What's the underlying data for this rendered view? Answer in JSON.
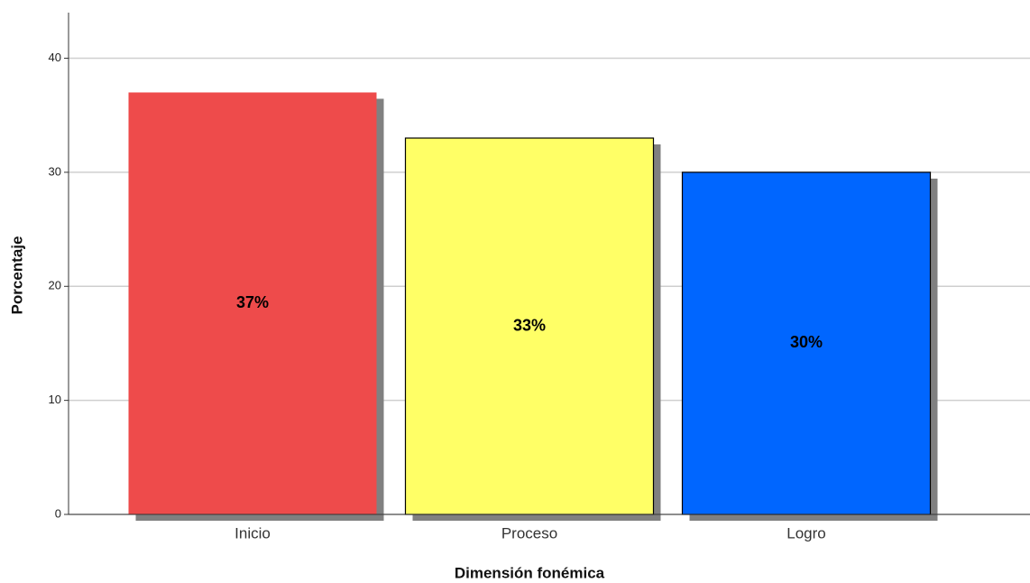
{
  "chart_data": {
    "type": "bar",
    "x_label": "Dimensión fonémica",
    "y_label": "Porcentaje",
    "categories": [
      "Inicio",
      "Proceso",
      "Logro"
    ],
    "values": [
      37,
      33,
      30
    ],
    "value_labels": [
      "37%",
      "33%",
      "30%"
    ],
    "colors": [
      "#ee4b4b",
      "#ffff66",
      "#0066ff"
    ],
    "shadow_color": "#808080",
    "ylim": [
      0,
      44
    ],
    "yticks": [
      0,
      10,
      20,
      30,
      40
    ],
    "grid": true
  }
}
